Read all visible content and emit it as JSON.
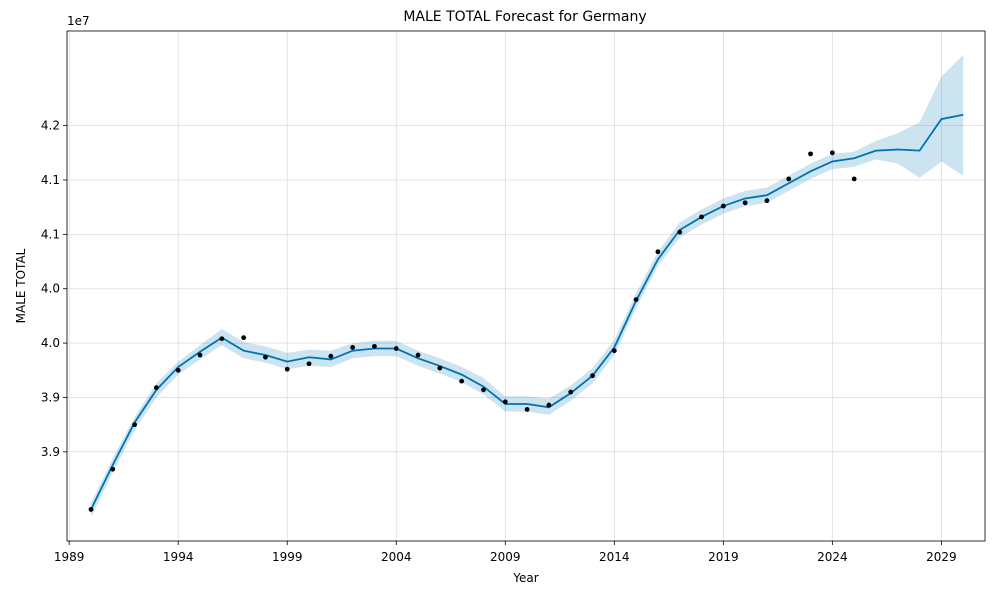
{
  "chart_data": {
    "type": "line",
    "title": "MALE TOTAL Forecast for Germany",
    "xlabel": "Year",
    "ylabel": "MALE TOTAL",
    "y_offset_text": "1e7",
    "y_scale_factor": 10000000,
    "xlim": [
      1988.9,
      2031.0
    ],
    "ylim": [
      38.18,
      42.87
    ],
    "x_ticks": [
      1989,
      1994,
      1999,
      2004,
      2009,
      2014,
      2019,
      2024,
      2029
    ],
    "x_tick_labels": [
      "1989",
      "1994",
      "1999",
      "2004",
      "2009",
      "2014",
      "2019",
      "2024",
      "2029"
    ],
    "y_ticks": [
      39.0,
      39.5,
      40.0,
      40.5,
      41.0,
      41.5,
      42.0
    ],
    "y_tick_labels": [
      "3.9",
      "3.9",
      "4.0",
      "4.0",
      "4.1",
      "4.1",
      "4.2"
    ],
    "y_tick_labels_visible": [
      "3.9",
      "4.0",
      "4.1",
      "4.2"
    ],
    "grid": true,
    "colors": {
      "forecast_line": "#0072B2",
      "interval_fill": "#0072B2",
      "actual_points": "#000000"
    },
    "series": [
      {
        "kind": "forecast",
        "x": [
          1990,
          1991,
          1992,
          1993,
          1994,
          1995,
          1996,
          1997,
          1998,
          1999,
          2000,
          2001,
          2002,
          2003,
          2004,
          2005,
          2006,
          2007,
          2008,
          2009,
          2010,
          2011,
          2012,
          2013,
          2014,
          2015,
          2016,
          2017,
          2018,
          2019,
          2020,
          2021,
          2022,
          2023,
          2024,
          2025,
          2026,
          2027,
          2028,
          2029,
          2030
        ],
        "y": [
          38.47,
          38.88,
          39.27,
          39.57,
          39.78,
          39.92,
          40.05,
          39.93,
          39.89,
          39.83,
          39.87,
          39.85,
          39.93,
          39.95,
          39.95,
          39.86,
          39.79,
          39.71,
          39.6,
          39.44,
          39.44,
          39.41,
          39.54,
          39.7,
          39.96,
          40.39,
          40.77,
          41.04,
          41.16,
          41.26,
          41.33,
          41.36,
          41.47,
          41.58,
          41.67,
          41.7,
          41.77,
          41.78,
          41.77,
          42.06,
          42.1
        ]
      },
      {
        "kind": "interval_upper",
        "x": [
          1990,
          1991,
          1992,
          1993,
          1994,
          1995,
          1996,
          1997,
          1998,
          1999,
          2000,
          2001,
          2002,
          2003,
          2004,
          2005,
          2006,
          2007,
          2008,
          2009,
          2010,
          2011,
          2012,
          2013,
          2014,
          2015,
          2016,
          2017,
          2018,
          2019,
          2020,
          2021,
          2022,
          2023,
          2024,
          2025,
          2026,
          2027,
          2028,
          2029,
          2030
        ],
        "y": [
          38.53,
          38.94,
          39.32,
          39.63,
          39.83,
          39.98,
          40.13,
          40.01,
          39.97,
          39.91,
          39.94,
          39.93,
          40.0,
          40.02,
          40.02,
          39.93,
          39.86,
          39.78,
          39.68,
          39.51,
          39.51,
          39.49,
          39.61,
          39.77,
          40.03,
          40.46,
          40.84,
          41.11,
          41.23,
          41.33,
          41.4,
          41.43,
          41.54,
          41.65,
          41.74,
          41.76,
          41.86,
          41.93,
          42.03,
          42.45,
          42.65
        ]
      },
      {
        "kind": "interval_lower",
        "x": [
          1990,
          1991,
          1992,
          1993,
          1994,
          1995,
          1996,
          1997,
          1998,
          1999,
          2000,
          2001,
          2002,
          2003,
          2004,
          2005,
          2006,
          2007,
          2008,
          2009,
          2010,
          2011,
          2012,
          2013,
          2014,
          2015,
          2016,
          2017,
          2018,
          2019,
          2020,
          2021,
          2022,
          2023,
          2024,
          2025,
          2026,
          2027,
          2028,
          2029,
          2030
        ],
        "y": [
          38.4,
          38.81,
          39.2,
          39.5,
          39.71,
          39.85,
          39.98,
          39.86,
          39.82,
          39.76,
          39.79,
          39.78,
          39.86,
          39.88,
          39.88,
          39.79,
          39.72,
          39.64,
          39.53,
          39.37,
          39.37,
          39.34,
          39.47,
          39.63,
          39.89,
          40.32,
          40.71,
          40.97,
          41.09,
          41.19,
          41.26,
          41.29,
          41.4,
          41.51,
          41.6,
          41.62,
          41.69,
          41.65,
          41.52,
          41.67,
          41.54
        ]
      },
      {
        "kind": "actual",
        "x": [
          1990,
          1991,
          1992,
          1993,
          1994,
          1995,
          1996,
          1997,
          1998,
          1999,
          2000,
          2001,
          2002,
          2003,
          2004,
          2005,
          2006,
          2007,
          2008,
          2009,
          2010,
          2011,
          2012,
          2013,
          2014,
          2015,
          2016,
          2017,
          2018,
          2019,
          2020,
          2021,
          2022,
          2023,
          2024,
          2025
        ],
        "y": [
          38.47,
          38.84,
          39.25,
          39.59,
          39.75,
          39.89,
          40.04,
          40.05,
          39.87,
          39.76,
          39.81,
          39.88,
          39.96,
          39.97,
          39.95,
          39.89,
          39.77,
          39.65,
          39.57,
          39.46,
          39.39,
          39.43,
          39.55,
          39.7,
          39.93,
          40.4,
          40.84,
          41.02,
          41.16,
          41.26,
          41.29,
          41.31,
          41.51,
          41.74,
          41.75,
          41.51
        ]
      }
    ]
  }
}
